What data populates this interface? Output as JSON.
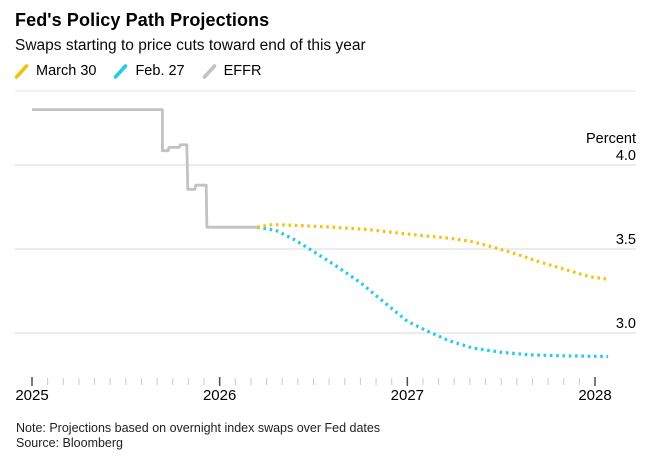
{
  "header": {
    "title": "Fed's Policy Path Projections",
    "subtitle": "Swaps starting to price cuts toward end of this year"
  },
  "legend": {
    "items": [
      {
        "label": "March 30",
        "color": "#f3c313",
        "swatch": "slash-icon"
      },
      {
        "label": "Feb. 27",
        "color": "#25cbe8",
        "swatch": "slash-icon"
      },
      {
        "label": "EFFR",
        "color": "#c2c2c2",
        "swatch": "slash-icon"
      }
    ]
  },
  "footer": {
    "note": "Note: Projections based on overnight index swaps over Fed dates",
    "source": "Source: Bloomberg"
  },
  "chart_data": {
    "type": "line",
    "title": "Fed's Policy Path Projections",
    "subtitle": "Swaps starting to price cuts toward end of this year",
    "ylabel": "Percent",
    "xlabel": "",
    "y_ticks": [
      4.0,
      3.5,
      3.0
    ],
    "y_tick_labels": [
      "4.0",
      "3.5",
      "3.0"
    ],
    "x_ticks": [
      2025,
      2026,
      2027,
      2028
    ],
    "x_tick_labels": [
      "2025",
      "2026",
      "2027",
      "2028"
    ],
    "x_minor_tick_interval_years": 0.08333,
    "xlim": [
      2025.0,
      2028.22
    ],
    "ylim": [
      2.62,
      4.48
    ],
    "grid": "horizontal",
    "legend_position": "top-left",
    "series": [
      {
        "name": "EFFR",
        "color": "#c2c2c2",
        "style": "solid",
        "points": [
          [
            2025.0,
            4.33
          ],
          [
            2025.695,
            4.33
          ],
          [
            2025.695,
            4.085
          ],
          [
            2025.725,
            4.085
          ],
          [
            2025.73,
            4.105
          ],
          [
            2025.785,
            4.105
          ],
          [
            2025.79,
            4.12
          ],
          [
            2025.825,
            4.12
          ],
          [
            2025.83,
            3.855
          ],
          [
            2025.868,
            3.855
          ],
          [
            2025.872,
            3.88
          ],
          [
            2025.928,
            3.88
          ],
          [
            2025.932,
            3.63
          ],
          [
            2026.2,
            3.63
          ]
        ]
      },
      {
        "name": "Feb. 27",
        "color": "#25cbe8",
        "style": "dotted",
        "points": [
          [
            2026.2,
            3.63
          ],
          [
            2026.3,
            3.61
          ],
          [
            2026.4,
            3.555
          ],
          [
            2026.5,
            3.485
          ],
          [
            2026.62,
            3.4
          ],
          [
            2026.75,
            3.3
          ],
          [
            2026.88,
            3.18
          ],
          [
            2027.0,
            3.07
          ],
          [
            2027.1,
            3.015
          ],
          [
            2027.22,
            2.955
          ],
          [
            2027.35,
            2.91
          ],
          [
            2027.5,
            2.885
          ],
          [
            2027.65,
            2.87
          ],
          [
            2027.8,
            2.865
          ],
          [
            2028.07,
            2.86
          ]
        ]
      },
      {
        "name": "March 30",
        "color": "#f3c313",
        "style": "dotted",
        "points": [
          [
            2026.2,
            3.63
          ],
          [
            2026.28,
            3.645
          ],
          [
            2026.42,
            3.64
          ],
          [
            2026.6,
            3.63
          ],
          [
            2026.8,
            3.615
          ],
          [
            2026.95,
            3.595
          ],
          [
            2027.08,
            3.58
          ],
          [
            2027.22,
            3.565
          ],
          [
            2027.34,
            3.545
          ],
          [
            2027.46,
            3.51
          ],
          [
            2027.58,
            3.47
          ],
          [
            2027.7,
            3.425
          ],
          [
            2027.85,
            3.375
          ],
          [
            2027.97,
            3.335
          ],
          [
            2028.07,
            3.32
          ]
        ]
      }
    ]
  }
}
